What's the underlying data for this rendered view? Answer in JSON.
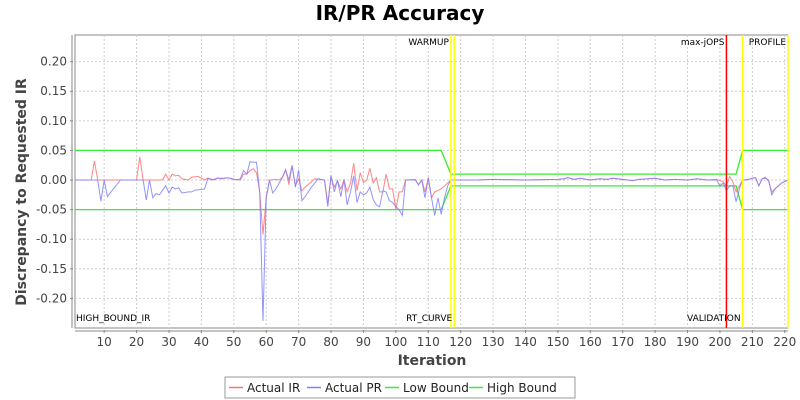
{
  "chart_data": {
    "type": "line",
    "title": "IR/PR Accuracy",
    "xlabel": "Iteration",
    "ylabel": "Discrepancy to Requested IR",
    "xlim": [
      1,
      221
    ],
    "ylim": [
      -0.25,
      0.245
    ],
    "x_ticks": [
      10,
      20,
      30,
      40,
      50,
      60,
      70,
      80,
      90,
      100,
      110,
      120,
      130,
      140,
      150,
      160,
      170,
      180,
      190,
      200,
      210,
      220
    ],
    "y_ticks": [
      -0.2,
      -0.15,
      -0.1,
      -0.05,
      0.0,
      0.05,
      0.1,
      0.15,
      0.2
    ],
    "y_tick_labels": [
      "-0.20",
      "-0.15",
      "-0.10",
      "-0.05",
      "0.00",
      "0.05",
      "0.10",
      "0.15",
      "0.20"
    ],
    "grid": true,
    "legend_placement": "bottom",
    "series": [
      {
        "name": "Actual IR",
        "color": "#ff7070",
        "points": [
          [
            1,
            0
          ],
          [
            6,
            0
          ],
          [
            7,
            0.032
          ],
          [
            8,
            0
          ],
          [
            20,
            0
          ],
          [
            21,
            0.039
          ],
          [
            22,
            0
          ],
          [
            28,
            0
          ],
          [
            29,
            0.01
          ],
          [
            30,
            0
          ],
          [
            31,
            0.01
          ],
          [
            32,
            0.007
          ],
          [
            33,
            0.008
          ],
          [
            34,
            0.002
          ],
          [
            36,
            0
          ],
          [
            37,
            0.005
          ],
          [
            39,
            0.006
          ],
          [
            40,
            0.003
          ],
          [
            41,
            0
          ],
          [
            42,
            0.003
          ],
          [
            44,
            0
          ],
          [
            45,
            0.004
          ],
          [
            46,
            0.002
          ],
          [
            48,
            0.004
          ],
          [
            50,
            0.001
          ],
          [
            52,
            0
          ],
          [
            53,
            0.01
          ],
          [
            54,
            0.01
          ],
          [
            55,
            0.016
          ],
          [
            56,
            0.019
          ],
          [
            57,
            0.012
          ],
          [
            58,
            -0.02
          ],
          [
            59,
            -0.092
          ],
          [
            60,
            -0.03
          ],
          [
            61,
            0
          ],
          [
            63,
            0.001
          ],
          [
            64,
            0
          ],
          [
            65,
            0.005
          ],
          [
            66,
            0.018
          ],
          [
            67,
            -0.008
          ],
          [
            68,
            0.024
          ],
          [
            69,
            -0.01
          ],
          [
            70,
            0.002
          ],
          [
            71,
            -0.018
          ],
          [
            72,
            -0.012
          ],
          [
            75,
            0.002
          ],
          [
            78,
            0
          ],
          [
            79,
            -0.04
          ],
          [
            80,
            0.006
          ],
          [
            81,
            -0.012
          ],
          [
            82,
            -0.002
          ],
          [
            83,
            -0.015
          ],
          [
            84,
            0
          ],
          [
            85,
            -0.02
          ],
          [
            86,
            -0.005
          ],
          [
            87,
            0.028
          ],
          [
            88,
            -0.018
          ],
          [
            89,
            0.012
          ],
          [
            90,
            -0.004
          ],
          [
            91,
            0
          ],
          [
            92,
            0.02
          ],
          [
            93,
            -0.005
          ],
          [
            94,
            0.004
          ],
          [
            95,
            -0.02
          ],
          [
            96,
            -0.02
          ],
          [
            97,
            0.01
          ],
          [
            98,
            -0.015
          ],
          [
            99,
            -0.015
          ],
          [
            100,
            -0.05
          ],
          [
            101,
            -0.02
          ],
          [
            102,
            -0.02
          ],
          [
            103,
            0
          ],
          [
            106,
            0.001
          ],
          [
            107,
            -0.008
          ],
          [
            108,
            0
          ],
          [
            109,
            -0.02
          ],
          [
            110,
            0.004
          ],
          [
            111,
            -0.03
          ],
          [
            112,
            -0.02
          ],
          [
            114,
            -0.015
          ],
          [
            116,
            -0.005
          ],
          [
            117,
            0
          ],
          [
            125,
            0
          ],
          [
            130,
            0.001
          ],
          [
            140,
            0
          ],
          [
            150,
            0.001
          ],
          [
            152,
            0.002
          ],
          [
            153,
            0.004
          ],
          [
            155,
            0.001
          ],
          [
            157,
            0.003
          ],
          [
            160,
            0
          ],
          [
            163,
            0.002
          ],
          [
            165,
            0.001
          ],
          [
            167,
            0.003
          ],
          [
            170,
            0.001
          ],
          [
            173,
            -0.001
          ],
          [
            175,
            0.001
          ],
          [
            178,
            0.002
          ],
          [
            180,
            0.003
          ],
          [
            183,
            0
          ],
          [
            186,
            0.001
          ],
          [
            190,
            0
          ],
          [
            193,
            0.002
          ],
          [
            196,
            0
          ],
          [
            199,
            0.001
          ],
          [
            201,
            -0.003
          ],
          [
            202,
            -0.01
          ],
          [
            203,
            0.006
          ],
          [
            204,
            -0.003
          ],
          [
            205,
            -0.02
          ],
          [
            206,
            -0.01
          ],
          [
            207,
            0
          ],
          [
            209,
            0.001
          ],
          [
            210,
            0.003
          ],
          [
            211,
            0.004
          ],
          [
            212,
            -0.01
          ],
          [
            213,
            0.002
          ],
          [
            214,
            0.005
          ],
          [
            215,
            -0.002
          ],
          [
            216,
            -0.02
          ],
          [
            217,
            -0.015
          ],
          [
            219,
            -0.005
          ],
          [
            221,
            0
          ]
        ]
      },
      {
        "name": "Actual PR",
        "color": "#8080ff",
        "points": [
          [
            1,
            0
          ],
          [
            8,
            0
          ],
          [
            9,
            -0.036
          ],
          [
            10,
            0
          ],
          [
            11,
            -0.028
          ],
          [
            15,
            0
          ],
          [
            22,
            0
          ],
          [
            23,
            -0.034
          ],
          [
            24,
            0
          ],
          [
            25,
            -0.03
          ],
          [
            26,
            -0.023
          ],
          [
            27,
            -0.025
          ],
          [
            29,
            -0.01
          ],
          [
            30,
            -0.022
          ],
          [
            31,
            -0.012
          ],
          [
            32,
            -0.015
          ],
          [
            33,
            -0.013
          ],
          [
            34,
            -0.022
          ],
          [
            36,
            -0.02
          ],
          [
            37,
            -0.02
          ],
          [
            38,
            -0.017
          ],
          [
            40,
            -0.016
          ],
          [
            41,
            -0.015
          ],
          [
            42,
            0.003
          ],
          [
            43,
            0
          ],
          [
            45,
            0.003
          ],
          [
            47,
            0.003
          ],
          [
            48,
            0.004
          ],
          [
            49,
            0.003
          ],
          [
            51,
            0
          ],
          [
            52,
            0.002
          ],
          [
            53,
            0.016
          ],
          [
            54,
            0.01
          ],
          [
            55,
            0.031
          ],
          [
            56,
            0.03
          ],
          [
            57,
            0.03
          ],
          [
            58,
            -0.02
          ],
          [
            59,
            -0.238
          ],
          [
            60,
            -0.03
          ],
          [
            61,
            0
          ],
          [
            62,
            -0.022
          ],
          [
            63,
            -0.015
          ],
          [
            64,
            -0.005
          ],
          [
            65,
            0.004
          ],
          [
            66,
            0.017
          ],
          [
            67,
            0
          ],
          [
            68,
            0.025
          ],
          [
            69,
            -0.012
          ],
          [
            70,
            0.017
          ],
          [
            71,
            -0.035
          ],
          [
            72,
            -0.028
          ],
          [
            74,
            -0.012
          ],
          [
            76,
            0.002
          ],
          [
            78,
            0
          ],
          [
            79,
            -0.045
          ],
          [
            80,
            0.008
          ],
          [
            81,
            -0.02
          ],
          [
            82,
            0
          ],
          [
            83,
            -0.028
          ],
          [
            84,
            0
          ],
          [
            85,
            -0.042
          ],
          [
            86,
            -0.02
          ],
          [
            87,
            0.007
          ],
          [
            88,
            -0.038
          ],
          [
            89,
            -0.02
          ],
          [
            90,
            -0.025
          ],
          [
            91,
            -0.022
          ],
          [
            92,
            -0.012
          ],
          [
            93,
            -0.033
          ],
          [
            94,
            -0.042
          ],
          [
            95,
            -0.045
          ],
          [
            96,
            -0.018
          ],
          [
            97,
            -0.02
          ],
          [
            98,
            -0.035
          ],
          [
            99,
            -0.038
          ],
          [
            100,
            -0.045
          ],
          [
            101,
            -0.05
          ],
          [
            102,
            -0.06
          ],
          [
            103,
            0
          ],
          [
            106,
            0
          ],
          [
            107,
            -0.008
          ],
          [
            108,
            0
          ],
          [
            109,
            -0.03
          ],
          [
            110,
            0.004
          ],
          [
            111,
            -0.03
          ],
          [
            112,
            -0.06
          ],
          [
            113,
            -0.03
          ],
          [
            114,
            -0.058
          ],
          [
            115,
            -0.03
          ],
          [
            116,
            -0.01
          ],
          [
            117,
            0
          ],
          [
            125,
            0
          ],
          [
            130,
            0.001
          ],
          [
            140,
            0
          ],
          [
            150,
            0.001
          ],
          [
            152,
            0.002
          ],
          [
            153,
            0.004
          ],
          [
            155,
            0.001
          ],
          [
            157,
            0.003
          ],
          [
            160,
            0
          ],
          [
            163,
            0.002
          ],
          [
            165,
            0.001
          ],
          [
            167,
            0.003
          ],
          [
            170,
            0.001
          ],
          [
            173,
            -0.001
          ],
          [
            175,
            0.001
          ],
          [
            178,
            0.002
          ],
          [
            180,
            0.003
          ],
          [
            183,
            0
          ],
          [
            186,
            0.001
          ],
          [
            190,
            0
          ],
          [
            193,
            0.002
          ],
          [
            196,
            0
          ],
          [
            199,
            0
          ],
          [
            200,
            -0.01
          ],
          [
            201,
            -0.005
          ],
          [
            202,
            -0.018
          ],
          [
            203,
            -0.01
          ],
          [
            204,
            -0.01
          ],
          [
            205,
            -0.037
          ],
          [
            206,
            -0.015
          ],
          [
            207,
            0
          ],
          [
            208,
            0
          ],
          [
            210,
            0.003
          ],
          [
            211,
            0.004
          ],
          [
            212,
            -0.01
          ],
          [
            213,
            0.002
          ],
          [
            214,
            0.003
          ],
          [
            215,
            0
          ],
          [
            216,
            -0.025
          ],
          [
            217,
            -0.015
          ],
          [
            219,
            -0.005
          ],
          [
            221,
            0
          ]
        ]
      },
      {
        "name": "Low Bound",
        "color": "#33ee33",
        "points": [
          [
            1,
            -0.05
          ],
          [
            114,
            -0.05
          ],
          [
            117,
            -0.01
          ],
          [
            205,
            -0.01
          ],
          [
            207,
            -0.05
          ],
          [
            221,
            -0.05
          ]
        ]
      },
      {
        "name": "High Bound",
        "color": "#33ee33",
        "points": [
          [
            1,
            0.05
          ],
          [
            114,
            0.05
          ],
          [
            117,
            0.01
          ],
          [
            205,
            0.01
          ],
          [
            207,
            0.05
          ],
          [
            221,
            0.05
          ]
        ]
      }
    ],
    "markers": [
      {
        "x": 1,
        "label": "HIGH_BOUND_IR",
        "position": "bottom",
        "color": "#ffff00"
      },
      {
        "x": 117,
        "label": "WARMUP",
        "position": "top",
        "color": "#ffff00"
      },
      {
        "x": 118,
        "label": "RT_CURVE",
        "position": "bottom",
        "color": "#ffff00"
      },
      {
        "x": 202,
        "label": "max-jOPS",
        "position": "top",
        "color": "#ff0000"
      },
      {
        "x": 207,
        "label": "VALIDATION",
        "position": "bottom",
        "color": "#ffff00"
      },
      {
        "x": 221,
        "label": "PROFILE",
        "position": "top",
        "color": "#ffff00"
      }
    ]
  }
}
